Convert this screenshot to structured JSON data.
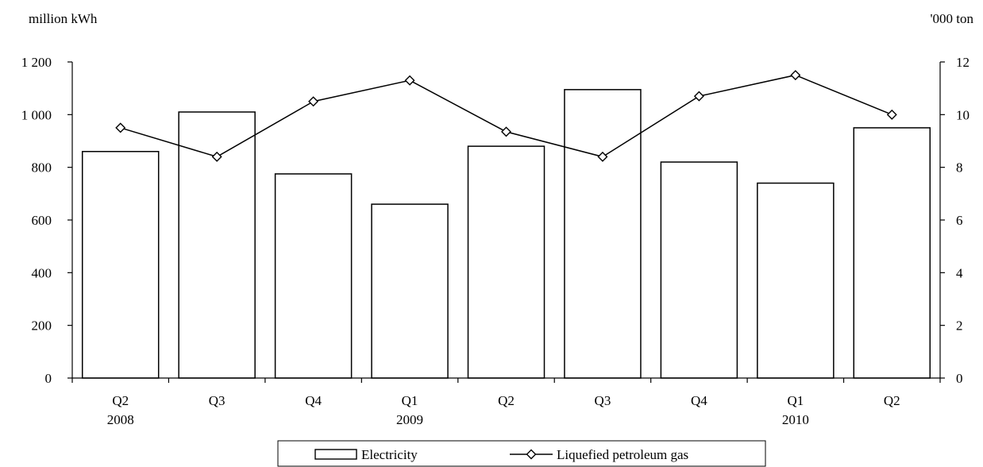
{
  "chart_data": {
    "type": "bar",
    "title": "",
    "categories": [
      "Q2",
      "Q3",
      "Q4",
      "Q1",
      "Q2",
      "Q3",
      "Q4",
      "Q1",
      "Q2"
    ],
    "year_labels": [
      "2008",
      "",
      "",
      "2009",
      "",
      "",
      "",
      "2010",
      ""
    ],
    "left_axis": {
      "label": "million kWh",
      "ylim": [
        0,
        1200
      ],
      "ticks": [
        "0",
        "200",
        "400",
        "600",
        "800",
        "1 000",
        "1 200"
      ]
    },
    "right_axis": {
      "label": "'000 ton",
      "ylim": [
        0,
        12
      ],
      "ticks": [
        "0",
        "2",
        "4",
        "6",
        "8",
        "10",
        "12"
      ]
    },
    "series": [
      {
        "name": "Electricity",
        "type": "bar",
        "axis": "left",
        "values": [
          860,
          1010,
          775,
          660,
          880,
          1095,
          820,
          740,
          950
        ]
      },
      {
        "name": "Liquefied petroleum gas",
        "type": "line",
        "axis": "right",
        "marker": "diamond",
        "values": [
          9.5,
          8.4,
          10.5,
          11.3,
          9.35,
          8.4,
          10.7,
          11.5,
          10.0
        ]
      }
    ],
    "grid": false,
    "legend_position": "bottom"
  }
}
